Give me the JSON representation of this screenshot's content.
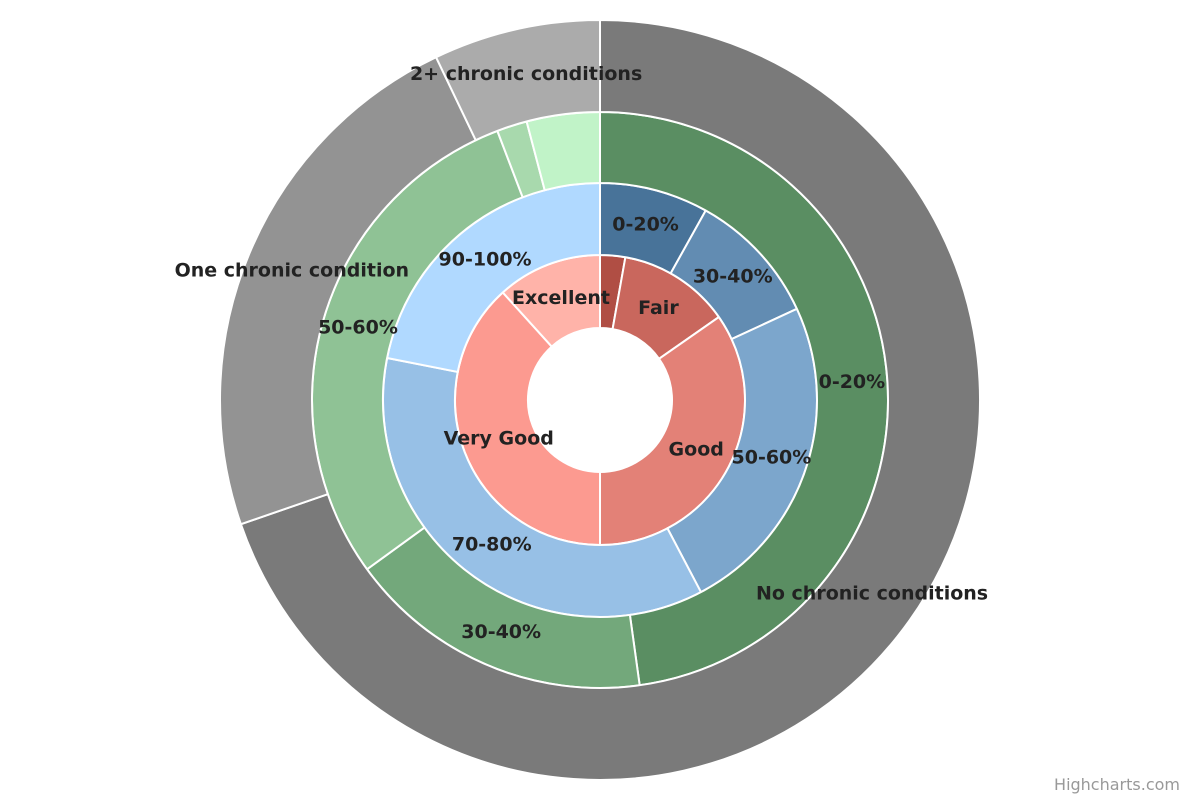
{
  "chart_data": {
    "type": "sunburst",
    "credits": "Highcharts.com",
    "rings": [
      {
        "names": [
          null,
          "Fair",
          "Good",
          "Very Good",
          "Excellent"
        ],
        "values": [
          2.8,
          12.5,
          34.7,
          38.3,
          11.7
        ],
        "colors": [
          "#b04e44",
          "#c9675d",
          "#e38177",
          "#fc9a90",
          "#ffb3a9"
        ]
      },
      {
        "names": [
          "0-20%",
          "30-40%",
          "50-60%",
          "70-80%",
          "90-100%"
        ],
        "values": [
          8.1,
          10,
          24.2,
          35.8,
          21.9
        ],
        "colors": [
          "#487399",
          "#628cb2",
          "#7ca6cc",
          "#97c0e6",
          "#b0d9ff"
        ]
      },
      {
        "names": [
          "0-20%",
          "30-40%",
          "50-60%",
          null,
          null
        ],
        "values": [
          47.8,
          17.2,
          29.2,
          1.7,
          4.1
        ],
        "colors": [
          "#5a8e62",
          "#73a87b",
          "#8fc295",
          "#a8d9ad",
          "#c1f3c8"
        ]
      },
      {
        "names": [
          "No chronic conditions",
          "One chronic condition",
          "2+ chronic conditions"
        ],
        "values": [
          69.7,
          23.2,
          7.1
        ],
        "colors": [
          "#7a7a7a",
          "#939393",
          "#ababab"
        ]
      }
    ]
  }
}
